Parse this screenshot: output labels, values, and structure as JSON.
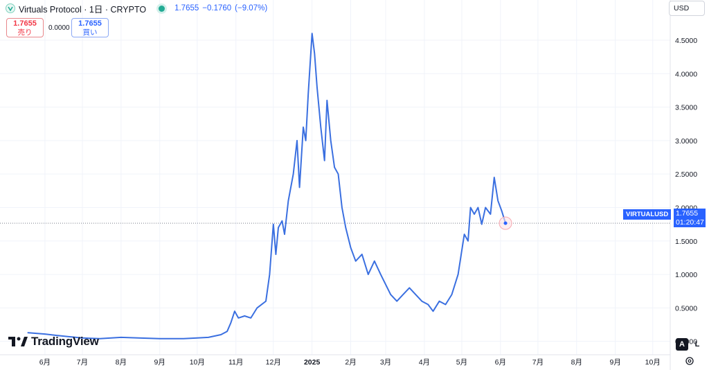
{
  "header": {
    "title": "Virtuals Protocol · 1日 · CRYPTO",
    "last": "1.7655",
    "change": "−0.1760",
    "change_pct": "(−9.07%)"
  },
  "trade": {
    "sell_price": "1.7655",
    "sell_label": "売り",
    "spread": "0.0000",
    "buy_price": "1.7655",
    "buy_label": "買い"
  },
  "currency": "USD",
  "price_tag": {
    "symbol": "VIRTUALUSD",
    "price": "1.7655",
    "countdown": "01:20:47"
  },
  "branding": {
    "logo_text": "TradingView"
  },
  "controls": {
    "auto": "A",
    "log": "L"
  },
  "colors": {
    "line": "#3a6fe0",
    "accent": "#2962ff",
    "sell": "#f23645",
    "live": "#22ab94"
  },
  "chart_data": {
    "type": "line",
    "series": [
      {
        "values": [
          [
            "2024-05-18",
            0.13
          ],
          [
            "2024-05-25",
            0.12
          ],
          [
            "2024-06-01",
            0.11
          ],
          [
            "2024-06-10",
            0.09
          ],
          [
            "2024-06-20",
            0.07
          ],
          [
            "2024-07-01",
            0.05
          ],
          [
            "2024-07-15",
            0.04
          ],
          [
            "2024-08-01",
            0.06
          ],
          [
            "2024-08-15",
            0.05
          ],
          [
            "2024-09-01",
            0.04
          ],
          [
            "2024-09-20",
            0.04
          ],
          [
            "2024-10-01",
            0.05
          ],
          [
            "2024-10-10",
            0.06
          ],
          [
            "2024-10-20",
            0.1
          ],
          [
            "2024-10-25",
            0.15
          ],
          [
            "2024-10-28",
            0.28
          ],
          [
            "2024-10-31",
            0.45
          ],
          [
            "2024-11-03",
            0.35
          ],
          [
            "2024-11-08",
            0.38
          ],
          [
            "2024-11-13",
            0.35
          ],
          [
            "2024-11-18",
            0.5
          ],
          [
            "2024-11-25",
            0.6
          ],
          [
            "2024-11-28",
            1.0
          ],
          [
            "2024-12-01",
            1.75
          ],
          [
            "2024-12-03",
            1.3
          ],
          [
            "2024-12-05",
            1.7
          ],
          [
            "2024-12-08",
            1.8
          ],
          [
            "2024-12-10",
            1.6
          ],
          [
            "2024-12-13",
            2.1
          ],
          [
            "2024-12-17",
            2.5
          ],
          [
            "2024-12-20",
            3.0
          ],
          [
            "2024-12-22",
            2.3
          ],
          [
            "2024-12-25",
            3.2
          ],
          [
            "2024-12-27",
            3.0
          ],
          [
            "2024-12-29",
            3.7
          ],
          [
            "2025-01-01",
            4.6
          ],
          [
            "2025-01-03",
            4.3
          ],
          [
            "2025-01-05",
            3.8
          ],
          [
            "2025-01-08",
            3.2
          ],
          [
            "2025-01-11",
            2.7
          ],
          [
            "2025-01-13",
            3.6
          ],
          [
            "2025-01-16",
            3.0
          ],
          [
            "2025-01-19",
            2.6
          ],
          [
            "2025-01-22",
            2.5
          ],
          [
            "2025-01-25",
            2.0
          ],
          [
            "2025-01-28",
            1.7
          ],
          [
            "2025-02-01",
            1.4
          ],
          [
            "2025-02-05",
            1.2
          ],
          [
            "2025-02-10",
            1.3
          ],
          [
            "2025-02-15",
            1.0
          ],
          [
            "2025-02-20",
            1.2
          ],
          [
            "2025-02-25",
            1.0
          ],
          [
            "2025-03-01",
            0.85
          ],
          [
            "2025-03-05",
            0.7
          ],
          [
            "2025-03-10",
            0.6
          ],
          [
            "2025-03-15",
            0.7
          ],
          [
            "2025-03-20",
            0.8
          ],
          [
            "2025-03-25",
            0.7
          ],
          [
            "2025-03-30",
            0.6
          ],
          [
            "2025-04-04",
            0.55
          ],
          [
            "2025-04-08",
            0.45
          ],
          [
            "2025-04-13",
            0.6
          ],
          [
            "2025-04-18",
            0.55
          ],
          [
            "2025-04-23",
            0.7
          ],
          [
            "2025-04-28",
            1.0
          ],
          [
            "2025-05-03",
            1.6
          ],
          [
            "2025-05-06",
            1.5
          ],
          [
            "2025-05-08",
            2.0
          ],
          [
            "2025-05-11",
            1.9
          ],
          [
            "2025-05-14",
            2.0
          ],
          [
            "2025-05-17",
            1.75
          ],
          [
            "2025-05-20",
            2.0
          ],
          [
            "2025-05-24",
            1.9
          ],
          [
            "2025-05-27",
            2.45
          ],
          [
            "2025-05-30",
            2.1
          ],
          [
            "2025-06-02",
            1.95
          ],
          [
            "2025-06-05",
            1.7655
          ]
        ]
      }
    ],
    "y_ticks": [
      "0.0000",
      "0.5000",
      "1.0000",
      "1.5000",
      "2.0000",
      "2.5000",
      "3.0000",
      "3.5000",
      "4.0000",
      "4.5000"
    ],
    "x_ticks": [
      "6月",
      "7月",
      "8月",
      "9月",
      "10月",
      "11月",
      "12月",
      "2025",
      "2月",
      "3月",
      "4月",
      "5月",
      "6月",
      "7月",
      "8月",
      "9月",
      "10月"
    ],
    "x_tick_dates": [
      "2024-06-01",
      "2024-07-01",
      "2024-08-01",
      "2024-09-01",
      "2024-10-01",
      "2024-11-01",
      "2024-12-01",
      "2025-01-01",
      "2025-02-01",
      "2025-03-01",
      "2025-04-01",
      "2025-05-01",
      "2025-06-01",
      "2025-07-01",
      "2025-08-01",
      "2025-09-01",
      "2025-10-01"
    ],
    "ylim": [
      -0.2,
      5.1
    ],
    "xlim": [
      "2024-04-26",
      "2025-10-15"
    ],
    "grid": true,
    "last_value": 1.7655
  }
}
